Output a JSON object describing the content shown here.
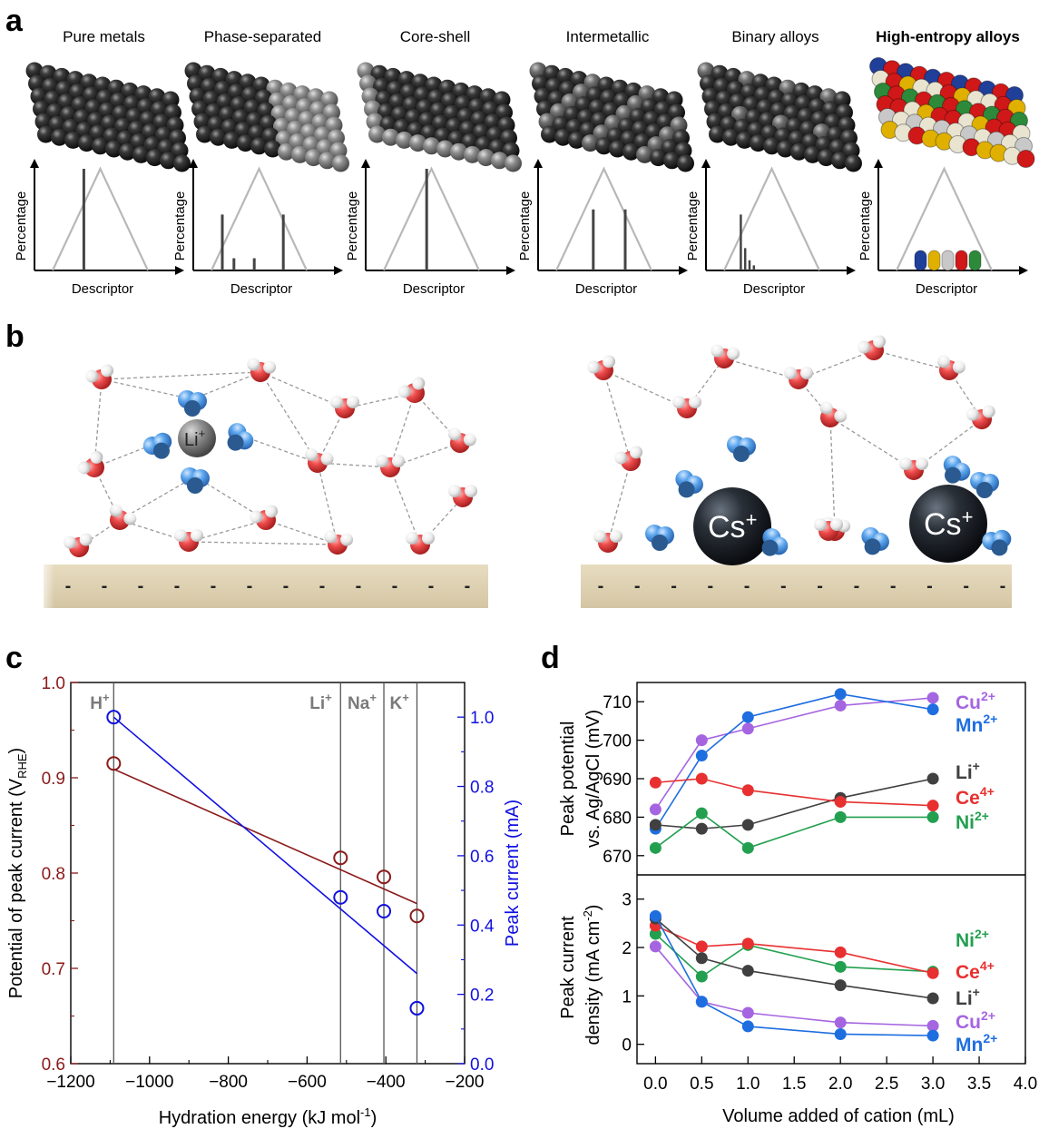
{
  "panels": {
    "a": {
      "letter": "a",
      "descriptor_label": "Descriptor",
      "percentage_label": "Percentage",
      "columns": [
        {
          "title": "Pure metals",
          "bold": false,
          "sphere_colors": [
            "#3a3a3a"
          ],
          "bars": [
            1.0
          ]
        },
        {
          "title": "Phase-separated",
          "bold": false,
          "sphere_colors": [
            "#3a3a3a",
            "#8a8a8a"
          ],
          "bars": [
            0.55,
            0.12,
            0.12,
            0.55
          ]
        },
        {
          "title": "Core-shell",
          "bold": false,
          "sphere_colors": [
            "#3a3a3a",
            "#8a8a8a"
          ],
          "bars": [
            1.0
          ]
        },
        {
          "title": "Intermetallic",
          "bold": false,
          "sphere_colors": [
            "#3a3a3a",
            "#7a7a7a"
          ],
          "bars": [
            0.6,
            0.6
          ]
        },
        {
          "title": "Binary alloys",
          "bold": false,
          "sphere_colors": [
            "#3a3a3a",
            "#7a7a7a"
          ],
          "bars": [
            0.55,
            0.22,
            0.1,
            0.05
          ]
        },
        {
          "title": "High-entropy alloys",
          "bold": true,
          "sphere_colors": [
            "#1f3f99",
            "#e0b000",
            "#c8c8c8",
            "#d01818",
            "#2c8a3a",
            "#e8e4d0"
          ],
          "bars": []
        }
      ]
    },
    "b": {
      "letter": "b",
      "left_ion": "Li",
      "left_ion_charge": "+",
      "right_ion": "Cs",
      "right_ion_charge": "+",
      "surface_charge": "-"
    },
    "c": {
      "letter": "c",
      "markers": [
        "H",
        "Li",
        "Na",
        "K"
      ],
      "marker_charge": "+"
    },
    "d": {
      "letter": "d",
      "top_ylabel_line1": "Peak potential",
      "top_ylabel_line2": "vs. Ag/AgCl (mV)",
      "bottom_ylabel_line1": "Peak current",
      "bottom_ylabel_line2": "density (mA cm",
      "bottom_ylabel_sup": "-2",
      "bottom_ylabel_end": ")"
    }
  },
  "colors": {
    "potential": "#8b1a1a",
    "current": "#1010e0",
    "Cu": "#a565e0",
    "Mn": "#1e6ee0",
    "Li": "#404040",
    "Ce": "#e83030",
    "Ni": "#22a050"
  },
  "chart_data": [
    {
      "type": "scatter",
      "panel": "c",
      "xlabel": "Hydration energy (kJ mol",
      "xlabel_sup": "-1",
      "xlabel_end": ")",
      "ylabel": "Potential of peak current (V",
      "ylabel_sub": "RHE",
      "ylabel_end": ")",
      "y2label": "Peak current (mA)",
      "xlim": [
        -1200,
        -200
      ],
      "ylim": [
        0.6,
        1.0
      ],
      "y2lim": [
        0.0,
        1.1
      ],
      "xticks": [
        -1200,
        -1000,
        -800,
        -600,
        -400,
        -200
      ],
      "xtick_labels": [
        "−1200",
        "−1000",
        "−800",
        "−600",
        "−400",
        "−200"
      ],
      "yticks": [
        0.6,
        0.7,
        0.8,
        0.9,
        1.0
      ],
      "ytick_labels": [
        "0.6",
        "0.7",
        "0.8",
        "0.9",
        "1.0"
      ],
      "y2ticks": [
        0.0,
        0.2,
        0.4,
        0.6,
        0.8,
        1.0
      ],
      "y2tick_labels": [
        "0.0",
        "0.2",
        "0.4",
        "0.6",
        "0.8",
        "1.0"
      ],
      "vlines": [
        -1091,
        -515,
        -405,
        -321
      ],
      "series": [
        {
          "axis": "left",
          "x": [
            -1091,
            -515,
            -405,
            -321
          ],
          "y": [
            0.915,
            0.816,
            0.796,
            0.755
          ],
          "fit": [
            [
              -1091,
              0.909
            ],
            [
              -321,
              0.768
            ]
          ]
        },
        {
          "axis": "right",
          "x": [
            -1091,
            -515,
            -405,
            -321
          ],
          "y": [
            1.0,
            0.48,
            0.44,
            0.16
          ],
          "fit": [
            [
              -1091,
              1.0
            ],
            [
              -321,
              0.26
            ]
          ]
        }
      ]
    },
    {
      "type": "line",
      "panel": "d-top",
      "x": [
        0.0,
        0.5,
        1.0,
        2.0,
        3.0
      ],
      "ylim": [
        665,
        715
      ],
      "yticks": [
        670,
        680,
        690,
        700,
        710
      ],
      "ytick_labels": [
        "670",
        "680",
        "690",
        "700",
        "710"
      ],
      "series": [
        {
          "name": "Cu",
          "charge": "2+",
          "values": [
            682,
            700,
            703,
            709,
            711
          ]
        },
        {
          "name": "Mn",
          "charge": "2+",
          "values": [
            677,
            696,
            706,
            712,
            708
          ]
        },
        {
          "name": "Li",
          "charge": "+",
          "values": [
            678,
            677,
            678,
            685,
            690
          ]
        },
        {
          "name": "Ce",
          "charge": "4+",
          "values": [
            689,
            690,
            687,
            684,
            683
          ]
        },
        {
          "name": "Ni",
          "charge": "2+",
          "values": [
            672,
            681,
            672,
            680,
            680
          ]
        }
      ]
    },
    {
      "type": "line",
      "panel": "d-bottom",
      "xlabel": "Volume added of cation (mL)",
      "x": [
        0.0,
        0.5,
        1.0,
        2.0,
        3.0
      ],
      "xlim": [
        -0.2,
        4.0
      ],
      "xticks": [
        0.0,
        0.5,
        1.0,
        1.5,
        2.0,
        2.5,
        3.0,
        3.5,
        4.0
      ],
      "xtick_labels": [
        "0.0",
        "0.5",
        "1.0",
        "1.5",
        "2.0",
        "2.5",
        "3.0",
        "3.5",
        "4.0"
      ],
      "ylim": [
        -0.4,
        3.5
      ],
      "yticks": [
        0,
        1,
        2,
        3
      ],
      "ytick_labels": [
        "0",
        "1",
        "2",
        "3"
      ],
      "series": [
        {
          "name": "Ni",
          "charge": "2+",
          "values": [
            2.28,
            1.4,
            2.05,
            1.6,
            1.5
          ]
        },
        {
          "name": "Ce",
          "charge": "4+",
          "values": [
            2.45,
            2.02,
            2.08,
            1.9,
            1.47
          ]
        },
        {
          "name": "Li",
          "charge": "+",
          "values": [
            2.6,
            1.78,
            1.52,
            1.22,
            0.95
          ]
        },
        {
          "name": "Cu",
          "charge": "2+",
          "values": [
            2.02,
            0.88,
            0.65,
            0.45,
            0.38
          ]
        },
        {
          "name": "Mn",
          "charge": "2+",
          "values": [
            2.65,
            0.88,
            0.37,
            0.21,
            0.18
          ]
        }
      ]
    }
  ]
}
